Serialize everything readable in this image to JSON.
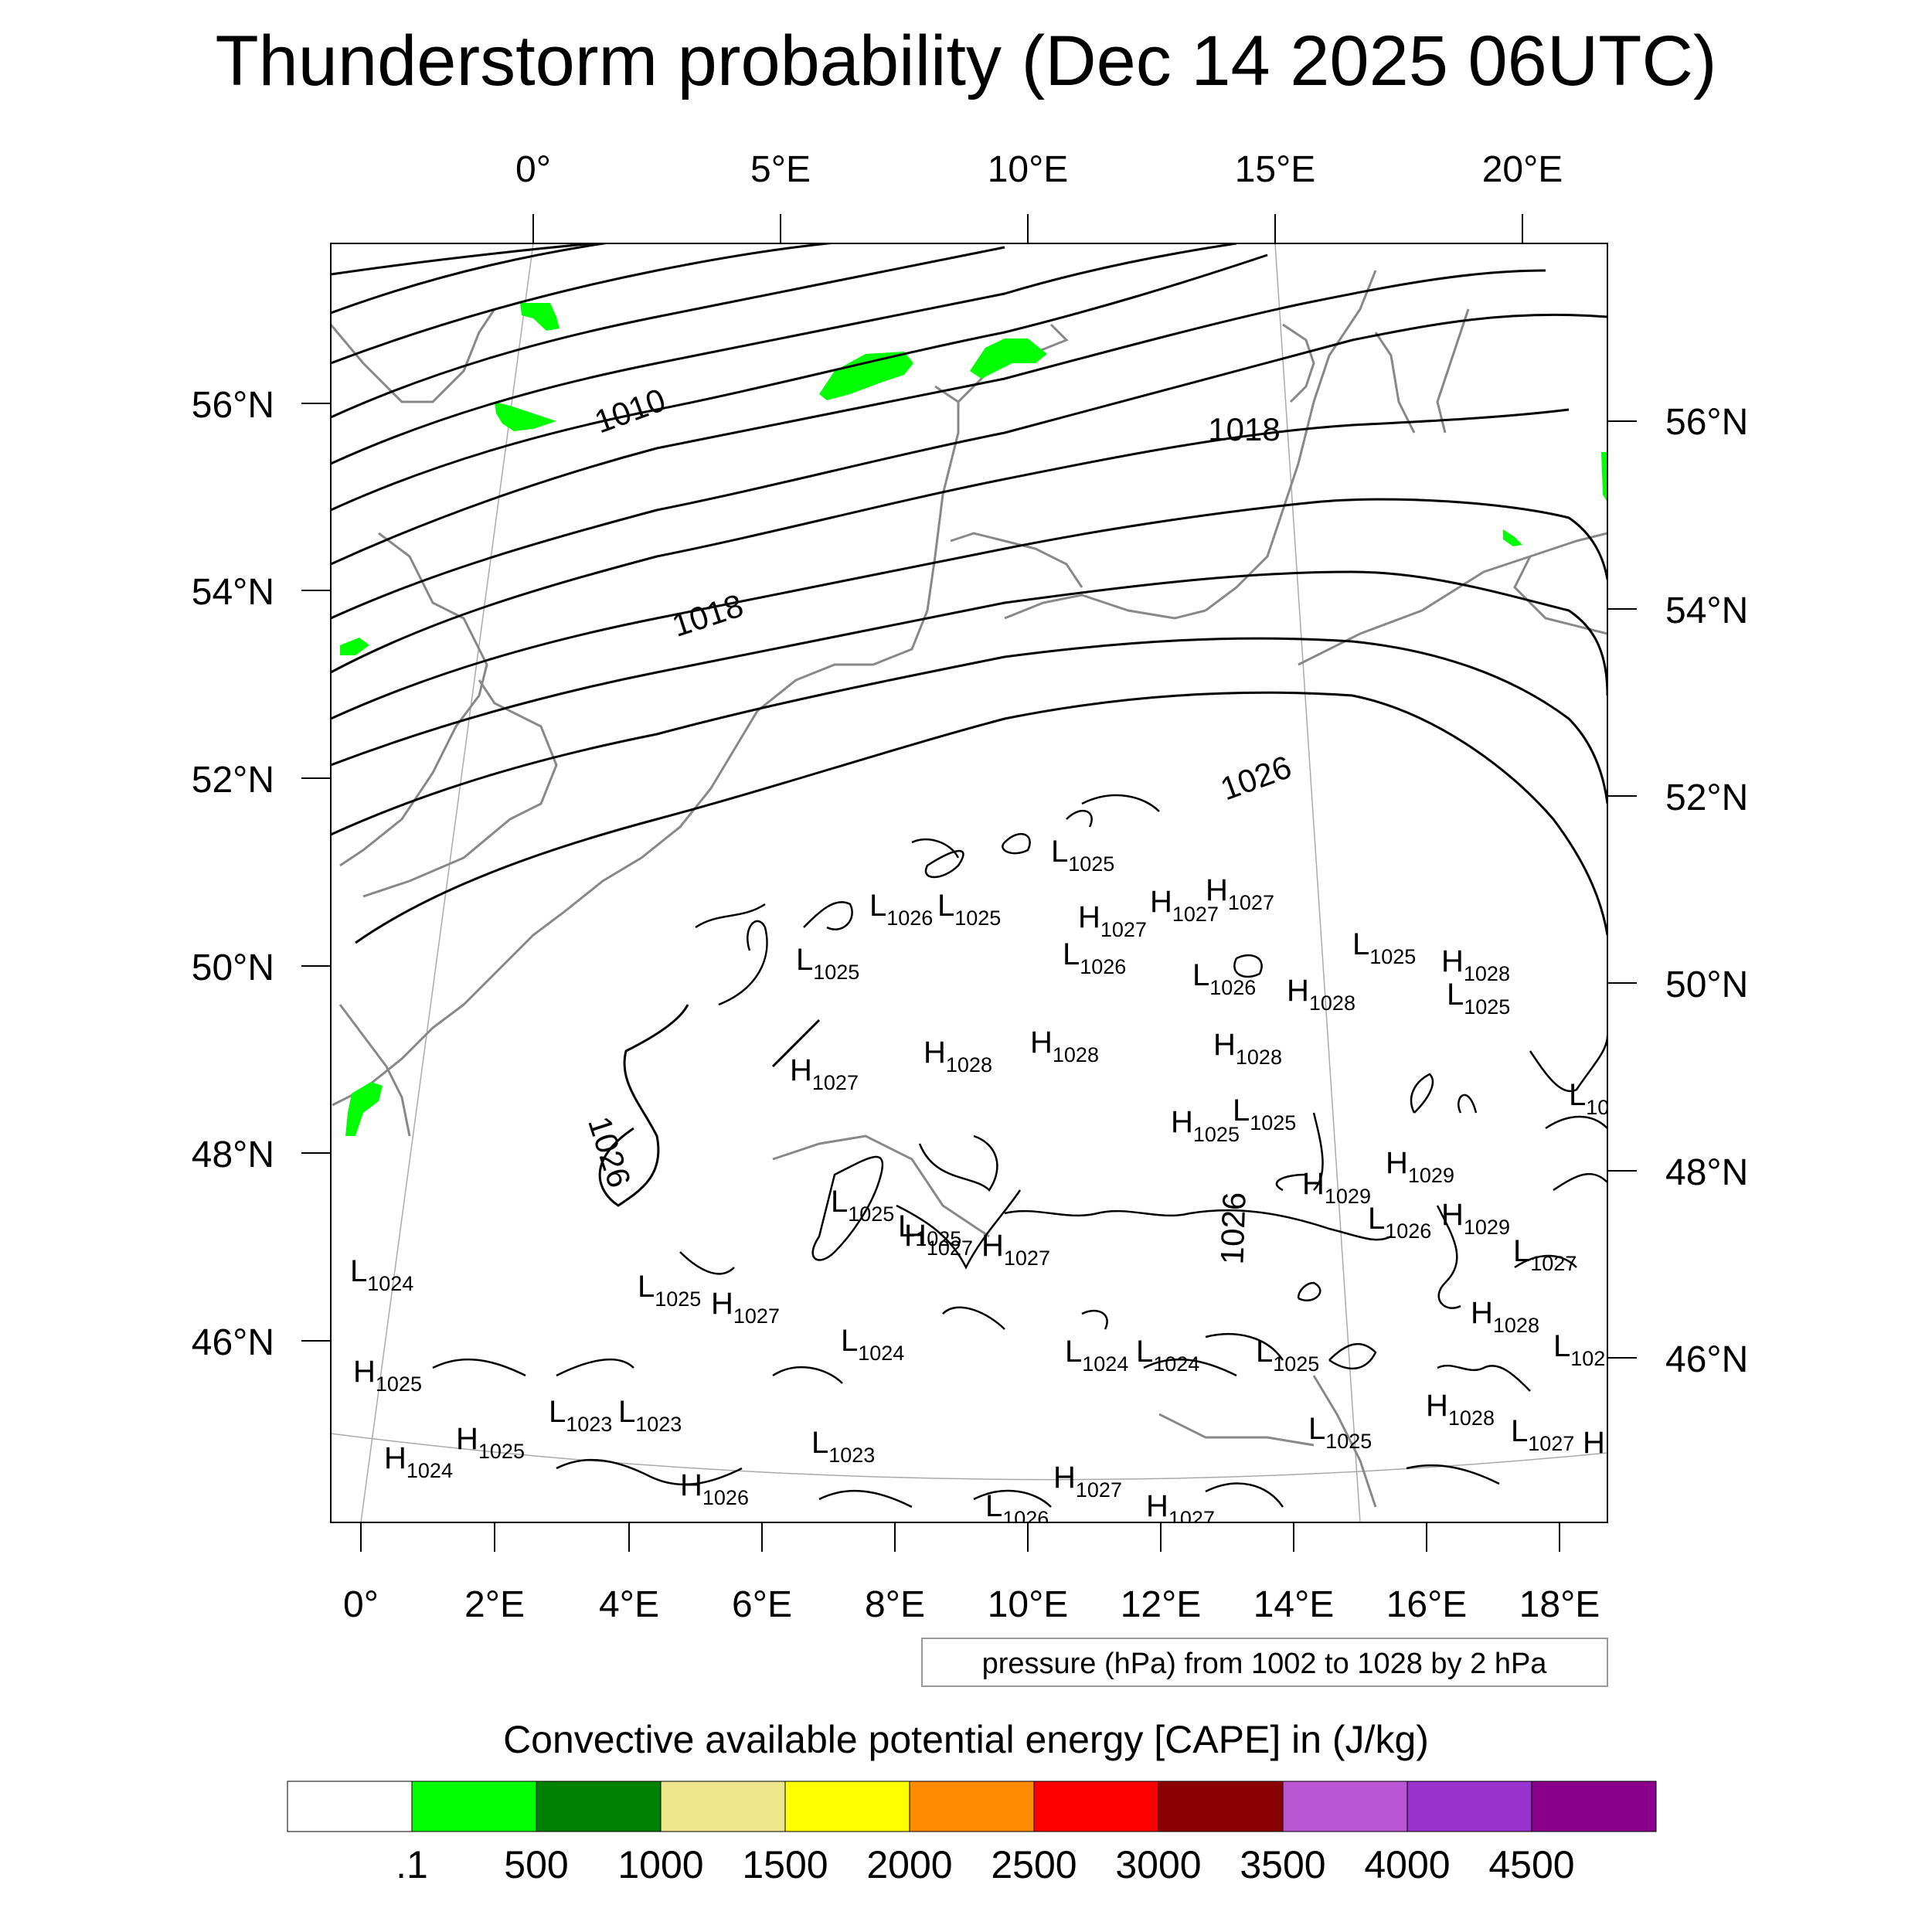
{
  "title": "Thunderstorm probability (Dec 14 2025 06UTC)",
  "top_lon_labels": [
    "0°",
    "5°E",
    "10°E",
    "15°E",
    "20°E"
  ],
  "left_lat_labels": [
    "56°N",
    "54°N",
    "52°N",
    "50°N",
    "48°N",
    "46°N"
  ],
  "right_lat_labels": [
    "56°N",
    "54°N",
    "52°N",
    "50°N",
    "48°N",
    "46°N"
  ],
  "bottom_lon_labels": [
    "0°",
    "2°E",
    "4°E",
    "6°E",
    "8°E",
    "10°E",
    "12°E",
    "14°E",
    "16°E",
    "18°E"
  ],
  "isobar_labels": [
    "1010",
    "1018",
    "1018",
    "1026",
    "1026",
    "1026"
  ],
  "pressure_centers": [
    {
      "letter": "L",
      "value": "1025"
    },
    {
      "letter": "L",
      "value": "1026"
    },
    {
      "letter": "L",
      "value": "1025"
    },
    {
      "letter": "H",
      "value": "1027"
    },
    {
      "letter": "H",
      "value": "1027"
    },
    {
      "letter": "H",
      "value": "1027"
    },
    {
      "letter": "L",
      "value": "1025"
    },
    {
      "letter": "L",
      "value": "1026"
    },
    {
      "letter": "L",
      "value": "1025"
    },
    {
      "letter": "H",
      "value": "1028"
    },
    {
      "letter": "L",
      "value": "1026"
    },
    {
      "letter": "H",
      "value": "1028"
    },
    {
      "letter": "L",
      "value": "1025"
    },
    {
      "letter": "H",
      "value": "1028"
    },
    {
      "letter": "H",
      "value": "1028"
    },
    {
      "letter": "H",
      "value": "1028"
    },
    {
      "letter": "H",
      "value": "1027"
    },
    {
      "letter": "H",
      "value": "1025"
    },
    {
      "letter": "L",
      "value": "1025"
    },
    {
      "letter": "L",
      "value": "10"
    },
    {
      "letter": "H",
      "value": "1029"
    },
    {
      "letter": "H",
      "value": "1029"
    },
    {
      "letter": "L",
      "value": "1025"
    },
    {
      "letter": "L",
      "value": "1025"
    },
    {
      "letter": "H",
      "value": "1027"
    },
    {
      "letter": "L",
      "value": "1026"
    },
    {
      "letter": "H",
      "value": "1029"
    },
    {
      "letter": "L",
      "value": "1027"
    },
    {
      "letter": "L",
      "value": "1024"
    },
    {
      "letter": "L",
      "value": "1025"
    },
    {
      "letter": "H",
      "value": "1027"
    },
    {
      "letter": "H",
      "value": "1028"
    },
    {
      "letter": "L",
      "value": "1024"
    },
    {
      "letter": "L",
      "value": "1024"
    },
    {
      "letter": "L",
      "value": "1024"
    },
    {
      "letter": "L",
      "value": "1025"
    },
    {
      "letter": "L",
      "value": "102"
    },
    {
      "letter": "H",
      "value": "1025"
    },
    {
      "letter": "L",
      "value": "1023"
    },
    {
      "letter": "L",
      "value": "1023"
    },
    {
      "letter": "H",
      "value": "1028"
    },
    {
      "letter": "H",
      "value": "1025"
    },
    {
      "letter": "L",
      "value": "1025"
    },
    {
      "letter": "H",
      "value": "1024"
    },
    {
      "letter": "L",
      "value": "1023"
    },
    {
      "letter": "H",
      "value": "1026"
    },
    {
      "letter": "H",
      "value": "1027"
    },
    {
      "letter": "L",
      "value": "1026"
    },
    {
      "letter": "H",
      "value": "1027"
    },
    {
      "letter": "H",
      "value": "1027"
    },
    {
      "letter": "L",
      "value": "1027"
    },
    {
      "letter": "H",
      "value": ""
    }
  ],
  "pressure_note": "pressure (hPa) from 1002 to 1028 by 2 hPa",
  "colorbar": {
    "title": "Convective available potential energy [CAPE] in (J/kg)",
    "colors": [
      "#ffffff",
      "#00ff00",
      "#008000",
      "#f0e68c",
      "#ffff00",
      "#ff8c00",
      "#ff0000",
      "#8b0000",
      "#ba55d3",
      "#9932cc",
      "#8b008b"
    ],
    "labels": [
      ".1",
      "500",
      "1000",
      "1500",
      "2000",
      "2500",
      "3000",
      "3500",
      "4000",
      "4500"
    ]
  },
  "cape_fill_color": "#00ff00"
}
